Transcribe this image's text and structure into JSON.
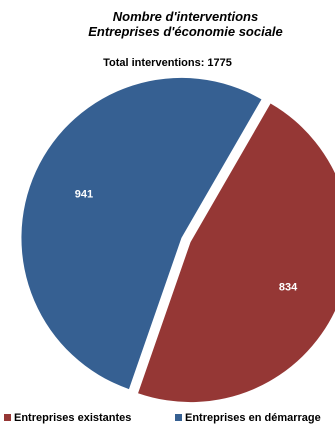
{
  "chart_data": {
    "type": "pie",
    "title_line1": "Nombre d'interventions",
    "title_line2": "Entreprises d'économie sociale",
    "subtitle": "Total interventions: 1775",
    "slices": [
      {
        "label": "Entreprises existantes",
        "value": 834,
        "color": "#953735"
      },
      {
        "label": "Entreprises en démarrage",
        "value": 941,
        "color": "#366092"
      }
    ],
    "legend_position": "bottom"
  }
}
